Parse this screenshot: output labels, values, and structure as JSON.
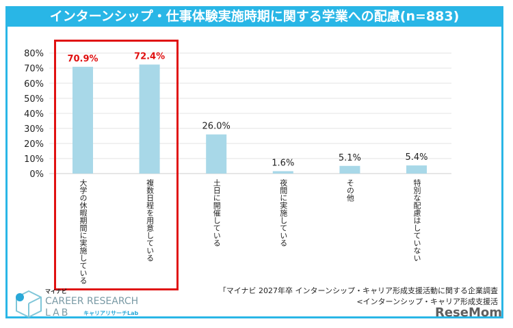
{
  "title": "インターンシップ・仕事体験実施時期に関する学業への配慮(n=883)",
  "chart_data": {
    "type": "bar",
    "categories": [
      "大学の休暇期間に実施している",
      "複数日程を用意している",
      "土日に開催している",
      "夜間に実施している",
      "その他",
      "特別な配慮はしていない"
    ],
    "values": [
      70.9,
      72.4,
      26.0,
      1.6,
      5.1,
      5.4
    ],
    "value_labels": [
      "70.9%",
      "72.4%",
      "26.0%",
      "1.6%",
      "5.1%",
      "5.4%"
    ],
    "highlighted": [
      true,
      true,
      false,
      false,
      false,
      false
    ],
    "yticks": [
      "0%",
      "10%",
      "20%",
      "30%",
      "40%",
      "50%",
      "60%",
      "70%",
      "80%"
    ],
    "ylim": [
      0,
      80
    ],
    "grid": true,
    "bar_color": "#a8d8e8",
    "highlight_color": "#e01010"
  },
  "logo": {
    "brand": "マイナビ",
    "line1": "CAREER RESEARCH",
    "line2": "LAB",
    "sub": "キャリアリサーチLab"
  },
  "source": {
    "line1": "「マイナビ 2027年卒 インターンシップ・キャリア形成支援活動に関する企業調査",
    "line2": "<インターンシップ・キャリア形成支援活"
  },
  "watermark": "ReseMom"
}
